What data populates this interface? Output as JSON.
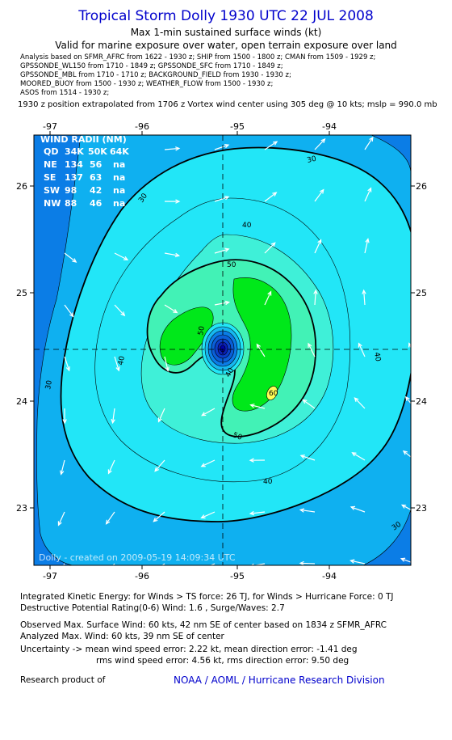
{
  "header": {
    "title": "Tropical Storm Dolly 1930 UTC 22 JUL 2008",
    "subtitle": "Max 1-min sustained surface winds (kt)",
    "validity": "Valid for marine exposure over water, open terrain exposure over land"
  },
  "analysis_lines": [
    "Analysis based on  SFMR_AFRC from 1622 - 1930 z;  SHIP from 1500 - 1800 z;  CMAN from 1509 - 1929 z;",
    "GPSSONDE_WL150 from 1710 - 1849 z;  GPSSONDE_SFC from 1710 - 1849 z;",
    "GPSSONDE_MBL from 1710 - 1710 z;  BACKGROUND_FIELD from 1930 - 1930 z;",
    "MOORED_BUOY from 1500 - 1930 z;  WEATHER_FLOW from 1500 - 1930 z;",
    "ASOS from 1514 - 1930 z;"
  ],
  "position_note": "1930 z position extrapolated from 1706 z Vortex wind center using 305 deg @ 10 kts; mslp = 990.0 mb",
  "map": {
    "lon_ticks": [
      "-97",
      "-96",
      "-95",
      "-94"
    ],
    "lat_ticks": [
      "26",
      "25",
      "24",
      "23"
    ],
    "contour_labels": [
      "30",
      "30",
      "30",
      "30",
      "40",
      "40",
      "40",
      "40",
      "40",
      "50",
      "50",
      "50",
      "60"
    ],
    "credit": "Dolly - created on 2009-05-19 14:09:34 UTC",
    "colors": {
      "c20": "#0b7de6",
      "c30": "#0fb0f0",
      "c40": "#22e6f7",
      "c50": "#42f2b6",
      "c60": "#00e81a",
      "c70": "#ffff55",
      "center": "#0000aa"
    }
  },
  "wind_radii": {
    "title": "WIND RADII (NM)",
    "header": [
      "QD",
      "34K",
      "50K",
      "64K"
    ],
    "rows": [
      [
        "NE",
        "134",
        "56",
        "na"
      ],
      [
        "SE",
        "137",
        "63",
        "na"
      ],
      [
        "SW",
        "98",
        "42",
        "na"
      ],
      [
        "NW",
        "88",
        "46",
        "na"
      ]
    ]
  },
  "footer": {
    "ike": "Integrated Kinetic Energy:  for Winds > TS force: 26 TJ,  for Winds > Hurricane Force: 0 TJ",
    "dpr": "Destructive Potential Rating(0-6)   Wind: 1.6 , Surge/Waves: 2.7",
    "observed": "Observed Max. Surface Wind: 60 kts, 42 nm SE of center based on 1834 z SFMR_AFRC",
    "analyzed": "Analyzed Max. Wind: 60 kts, 39 nm SE of center",
    "uncertainty1": "Uncertainty -> mean wind speed error: 2.22 kt,   mean direction error:  -1.41 deg",
    "uncertainty2": "rms wind speed error: 4.56 kt,   rms direction error: 9.50 deg",
    "research": "Research product of",
    "org": "NOAA / AOML / Hurricane Research Division"
  }
}
